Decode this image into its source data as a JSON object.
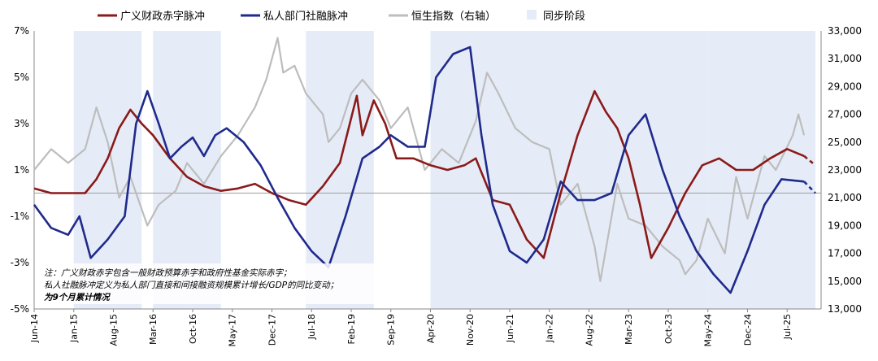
{
  "chart_data": {
    "type": "line",
    "legend_position": "top",
    "grid": false,
    "x_range": [
      "2014-06",
      "2026-01"
    ],
    "x_ticks": [
      "Jun-14",
      "Jan-15",
      "Aug-15",
      "Mar-16",
      "Oct-16",
      "May-17",
      "Dec-17",
      "Jul-18",
      "Feb-19",
      "Sep-19",
      "Apr-20",
      "Nov-20",
      "Jun-21",
      "Jan-22",
      "Aug-22",
      "Mar-23",
      "Oct-23",
      "May-24",
      "Dec-24",
      "Jul-25"
    ],
    "y_left": {
      "min": -5,
      "max": 7,
      "ticks": [
        "7%",
        "5%",
        "3%",
        "1%",
        "-1%",
        "-3%",
        "-5%"
      ],
      "zero_line": 0
    },
    "y_right": {
      "min": 13000,
      "max": 33000,
      "ticks": [
        "33,000",
        "31,000",
        "29,000",
        "27,000",
        "25,000",
        "23,000",
        "21,000",
        "19,000",
        "17,000",
        "15,000",
        "13,000"
      ]
    },
    "legend": [
      {
        "label": "广义财政赤字脉冲",
        "color": "#8B1A1A",
        "kind": "line"
      },
      {
        "label": "私人部门社融脉冲",
        "color": "#1F2A8C",
        "kind": "line"
      },
      {
        "label": "恒生指数（右轴）",
        "color": "#BDBDBD",
        "kind": "line"
      },
      {
        "label": "同步阶段",
        "color": "#E6ECF7",
        "kind": "box"
      }
    ],
    "sync_periods": [
      [
        "2015-01",
        "2016-01"
      ],
      [
        "2016-03",
        "2017-03"
      ],
      [
        "2018-06",
        "2019-06"
      ],
      [
        "2020-04",
        "2024-05"
      ],
      [
        "2024-05",
        "2025-12"
      ]
    ],
    "series": [
      {
        "name": "广义财政赤字脉冲",
        "axis": "left",
        "color": "#8B1A1A",
        "points": [
          [
            "2014-06",
            0.2
          ],
          [
            "2014-09",
            0.0
          ],
          [
            "2014-12",
            0.0
          ],
          [
            "2015-03",
            0.0
          ],
          [
            "2015-05",
            0.6
          ],
          [
            "2015-07",
            1.5
          ],
          [
            "2015-09",
            2.8
          ],
          [
            "2015-11",
            3.6
          ],
          [
            "2016-01",
            3.0
          ],
          [
            "2016-03",
            2.5
          ],
          [
            "2016-06",
            1.5
          ],
          [
            "2016-09",
            0.7
          ],
          [
            "2016-12",
            0.3
          ],
          [
            "2017-03",
            0.1
          ],
          [
            "2017-06",
            0.2
          ],
          [
            "2017-09",
            0.4
          ],
          [
            "2017-12",
            0.0
          ],
          [
            "2018-03",
            -0.3
          ],
          [
            "2018-06",
            -0.5
          ],
          [
            "2018-09",
            0.3
          ],
          [
            "2018-12",
            1.3
          ],
          [
            "2019-03",
            4.2
          ],
          [
            "2019-04",
            2.5
          ],
          [
            "2019-06",
            4.0
          ],
          [
            "2019-08",
            3.0
          ],
          [
            "2019-10",
            1.5
          ],
          [
            "2020-01",
            1.5
          ],
          [
            "2020-04",
            1.2
          ],
          [
            "2020-07",
            1.0
          ],
          [
            "2020-10",
            1.2
          ],
          [
            "2020-12",
            1.5
          ],
          [
            "2021-03",
            -0.3
          ],
          [
            "2021-06",
            -0.5
          ],
          [
            "2021-09",
            -2.0
          ],
          [
            "2021-12",
            -2.8
          ],
          [
            "2022-03",
            0.0
          ],
          [
            "2022-06",
            2.5
          ],
          [
            "2022-09",
            4.4
          ],
          [
            "2022-11",
            3.5
          ],
          [
            "2023-01",
            2.8
          ],
          [
            "2023-03",
            1.5
          ],
          [
            "2023-05",
            -0.5
          ],
          [
            "2023-07",
            -2.8
          ],
          [
            "2023-10",
            -1.5
          ],
          [
            "2024-01",
            0.0
          ],
          [
            "2024-04",
            1.2
          ],
          [
            "2024-07",
            1.5
          ],
          [
            "2024-10",
            1.0
          ],
          [
            "2025-01",
            1.0
          ],
          [
            "2025-04",
            1.5
          ],
          [
            "2025-07",
            1.9
          ],
          [
            "2025-10",
            1.6
          ]
        ],
        "dashed_from": "2025-10",
        "dashed_points": [
          [
            "2025-10",
            1.6
          ],
          [
            "2025-12",
            1.2
          ]
        ]
      },
      {
        "name": "私人部门社融脉冲",
        "axis": "left",
        "color": "#1F2A8C",
        "points": [
          [
            "2014-06",
            -0.5
          ],
          [
            "2014-09",
            -1.5
          ],
          [
            "2014-12",
            -1.8
          ],
          [
            "2015-02",
            -1.0
          ],
          [
            "2015-04",
            -2.8
          ],
          [
            "2015-07",
            -2.0
          ],
          [
            "2015-10",
            -1.0
          ],
          [
            "2015-12",
            3.0
          ],
          [
            "2016-02",
            4.4
          ],
          [
            "2016-04",
            3.0
          ],
          [
            "2016-06",
            1.5
          ],
          [
            "2016-08",
            2.0
          ],
          [
            "2016-10",
            2.4
          ],
          [
            "2016-12",
            1.6
          ],
          [
            "2017-02",
            2.5
          ],
          [
            "2017-04",
            2.8
          ],
          [
            "2017-07",
            2.2
          ],
          [
            "2017-10",
            1.2
          ],
          [
            "2018-01",
            -0.2
          ],
          [
            "2018-04",
            -1.5
          ],
          [
            "2018-07",
            -2.5
          ],
          [
            "2018-10",
            -3.2
          ],
          [
            "2019-01",
            -1.0
          ],
          [
            "2019-04",
            1.5
          ],
          [
            "2019-07",
            2.0
          ],
          [
            "2019-09",
            2.5
          ],
          [
            "2019-12",
            2.0
          ],
          [
            "2020-03",
            2.0
          ],
          [
            "2020-05",
            5.0
          ],
          [
            "2020-08",
            6.0
          ],
          [
            "2020-11",
            6.3
          ],
          [
            "2021-01",
            2.5
          ],
          [
            "2021-03",
            -0.5
          ],
          [
            "2021-06",
            -2.5
          ],
          [
            "2021-09",
            -3.0
          ],
          [
            "2021-12",
            -2.0
          ],
          [
            "2022-03",
            0.5
          ],
          [
            "2022-06",
            -0.3
          ],
          [
            "2022-09",
            -0.3
          ],
          [
            "2022-12",
            0.0
          ],
          [
            "2023-03",
            2.5
          ],
          [
            "2023-06",
            3.4
          ],
          [
            "2023-09",
            1.0
          ],
          [
            "2023-12",
            -1.0
          ],
          [
            "2024-03",
            -2.5
          ],
          [
            "2024-06",
            -3.5
          ],
          [
            "2024-09",
            -4.3
          ],
          [
            "2024-12",
            -2.5
          ],
          [
            "2025-03",
            -0.5
          ],
          [
            "2025-06",
            0.6
          ],
          [
            "2025-10",
            0.5
          ]
        ],
        "dashed_points": [
          [
            "2025-10",
            0.5
          ],
          [
            "2025-12",
            0.0
          ]
        ]
      },
      {
        "name": "恒生指数（右轴）",
        "axis": "right",
        "color": "#BDBDBD",
        "points": [
          [
            "2014-06",
            23000
          ],
          [
            "2014-09",
            24500
          ],
          [
            "2014-12",
            23500
          ],
          [
            "2015-03",
            24500
          ],
          [
            "2015-05",
            27500
          ],
          [
            "2015-07",
            25000
          ],
          [
            "2015-09",
            21000
          ],
          [
            "2015-11",
            22500
          ],
          [
            "2016-02",
            19000
          ],
          [
            "2016-04",
            20500
          ],
          [
            "2016-07",
            21500
          ],
          [
            "2016-09",
            23500
          ],
          [
            "2016-12",
            22000
          ],
          [
            "2017-03",
            24000
          ],
          [
            "2017-06",
            25500
          ],
          [
            "2017-09",
            27500
          ],
          [
            "2017-11",
            29500
          ],
          [
            "2018-01",
            32500
          ],
          [
            "2018-02",
            30000
          ],
          [
            "2018-04",
            30500
          ],
          [
            "2018-06",
            28500
          ],
          [
            "2018-09",
            27000
          ],
          [
            "2018-10",
            25000
          ],
          [
            "2018-12",
            26000
          ],
          [
            "2019-02",
            28500
          ],
          [
            "2019-04",
            29500
          ],
          [
            "2019-07",
            28000
          ],
          [
            "2019-09",
            26000
          ],
          [
            "2019-12",
            27500
          ],
          [
            "2020-03",
            23000
          ],
          [
            "2020-06",
            24500
          ],
          [
            "2020-09",
            23500
          ],
          [
            "2020-12",
            26500
          ],
          [
            "2021-02",
            30000
          ],
          [
            "2021-04",
            28500
          ],
          [
            "2021-07",
            26000
          ],
          [
            "2021-10",
            25000
          ],
          [
            "2022-01",
            24500
          ],
          [
            "2022-03",
            20500
          ],
          [
            "2022-06",
            22000
          ],
          [
            "2022-09",
            17500
          ],
          [
            "2022-10",
            15000
          ],
          [
            "2023-01",
            22000
          ],
          [
            "2023-03",
            19500
          ],
          [
            "2023-06",
            19000
          ],
          [
            "2023-09",
            17500
          ],
          [
            "2023-12",
            16500
          ],
          [
            "2024-01",
            15500
          ],
          [
            "2024-03",
            16500
          ],
          [
            "2024-05",
            19500
          ],
          [
            "2024-08",
            17000
          ],
          [
            "2024-10",
            22500
          ],
          [
            "2024-12",
            19500
          ],
          [
            "2025-03",
            24000
          ],
          [
            "2025-05",
            23000
          ],
          [
            "2025-08",
            25500
          ],
          [
            "2025-09",
            27000
          ],
          [
            "2025-10",
            25500
          ]
        ]
      }
    ]
  },
  "note": {
    "line1": "注：广义财政赤字包含一般财政预算赤字和政府性基金实际赤字；",
    "line2": "私人社融脉冲定义为私人部门直接和间接融资规模累计增长/GDP的同比变动；",
    "line3": "为9个月累计情况"
  }
}
